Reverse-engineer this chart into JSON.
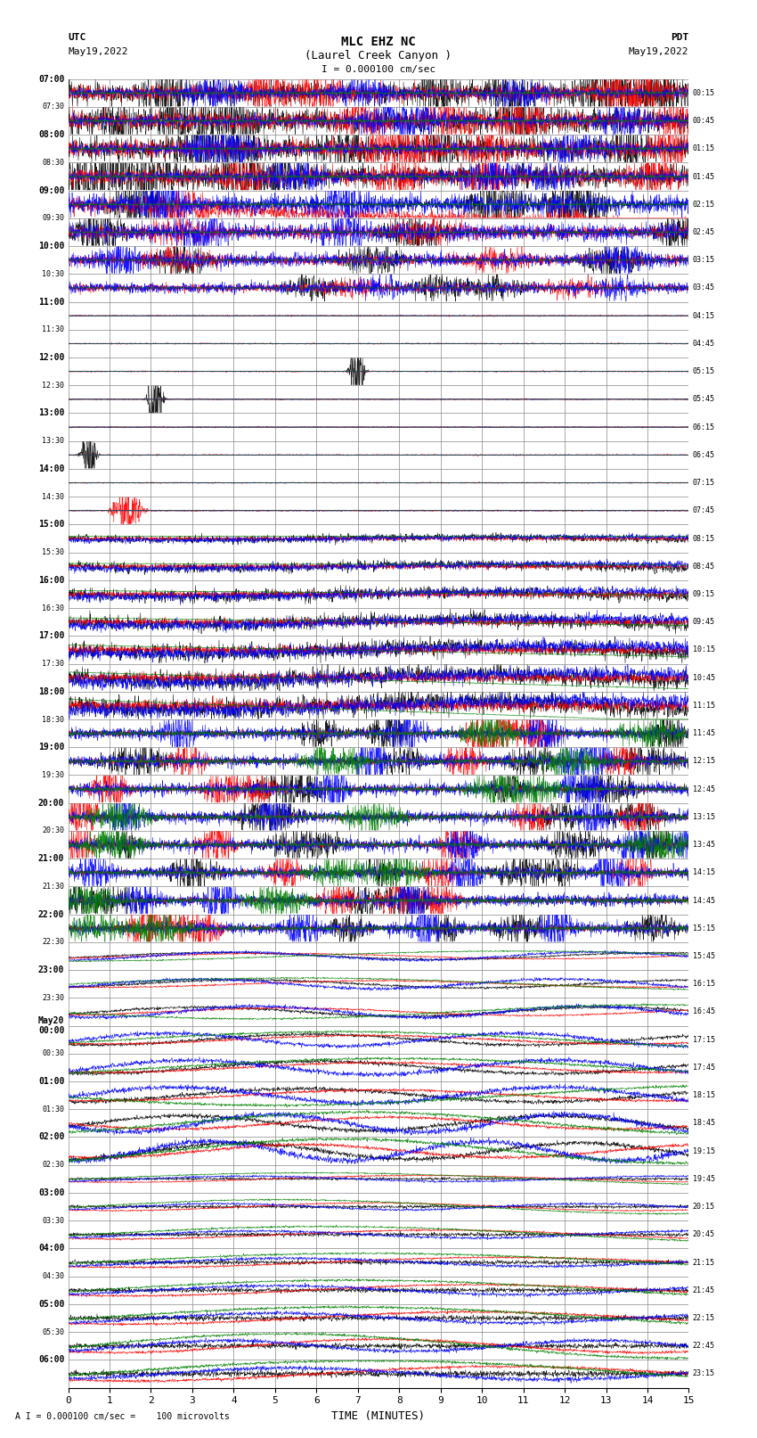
{
  "title_line1": "MLC EHZ NC",
  "title_line2": "(Laurel Creek Canyon )",
  "scale_label": "I = 0.000100 cm/sec",
  "footer_label": "A I = 0.000100 cm/sec =    100 microvolts",
  "xlabel": "TIME (MINUTES)",
  "xlim": [
    0,
    15
  ],
  "xticks": [
    0,
    1,
    2,
    3,
    4,
    5,
    6,
    7,
    8,
    9,
    10,
    11,
    12,
    13,
    14,
    15
  ],
  "bg_color": "#ffffff",
  "grid_color": "#888888",
  "trace_colors": [
    "black",
    "red",
    "blue",
    "green"
  ],
  "left_times_utc": [
    "07:00",
    "07:30",
    "08:00",
    "08:30",
    "09:00",
    "09:30",
    "10:00",
    "10:30",
    "11:00",
    "11:30",
    "12:00",
    "12:30",
    "13:00",
    "13:30",
    "14:00",
    "14:30",
    "15:00",
    "15:30",
    "16:00",
    "16:30",
    "17:00",
    "17:30",
    "18:00",
    "18:30",
    "19:00",
    "19:30",
    "20:00",
    "20:30",
    "21:00",
    "21:30",
    "22:00",
    "22:30",
    "23:00",
    "23:30",
    "May20\n00:00",
    "00:30",
    "01:00",
    "01:30",
    "02:00",
    "02:30",
    "03:00",
    "03:30",
    "04:00",
    "04:30",
    "05:00",
    "05:30",
    "06:00"
  ],
  "right_times_pdt": [
    "00:15",
    "00:45",
    "01:15",
    "01:45",
    "02:15",
    "02:45",
    "03:15",
    "03:45",
    "04:15",
    "04:45",
    "05:15",
    "05:45",
    "06:15",
    "06:45",
    "07:15",
    "07:45",
    "08:15",
    "08:45",
    "09:15",
    "09:45",
    "10:15",
    "10:45",
    "11:15",
    "11:45",
    "12:15",
    "12:45",
    "13:15",
    "13:45",
    "14:15",
    "14:45",
    "15:15",
    "15:45",
    "16:15",
    "16:45",
    "17:15",
    "17:45",
    "18:15",
    "18:45",
    "19:15",
    "19:45",
    "20:15",
    "20:45",
    "21:15",
    "21:45",
    "22:15",
    "22:45",
    "23:15"
  ],
  "n_rows": 47,
  "figsize": [
    8.5,
    16.13
  ],
  "dpi": 100
}
